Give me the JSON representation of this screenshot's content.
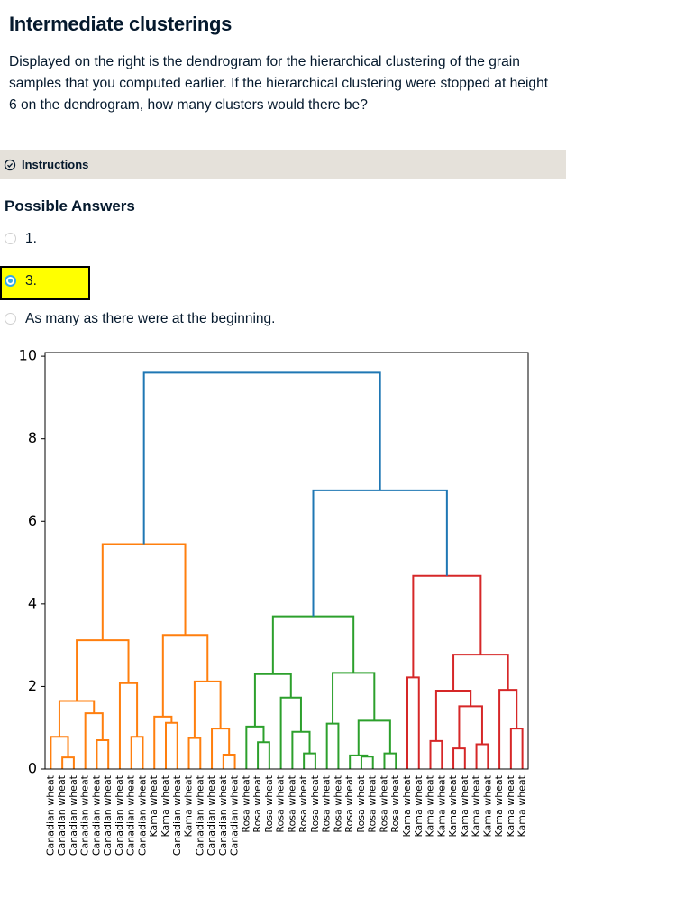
{
  "header": {
    "title": "Intermediate clusterings",
    "description": "Displayed on the right is the dendrogram for the hierarchical clustering of the grain samples that you computed earlier. If the hierarchical clustering were stopped at height 6 on the dendrogram, how many clusters would there be?"
  },
  "instructions": {
    "label": "Instructions"
  },
  "answers": {
    "heading": "Possible Answers",
    "options": [
      "1.",
      "3.",
      "As many as there were at the beginning."
    ],
    "selected": 1
  },
  "chart_data": {
    "type": "dendrogram",
    "leaves": [
      "Canadian wheat",
      "Canadian wheat",
      "Canadian wheat",
      "Canadian wheat",
      "Canadian wheat",
      "Canadian wheat",
      "Canadian wheat",
      "Canadian wheat",
      "Canadian wheat",
      "Kama wheat",
      "Kama wheat",
      "Canadian wheat",
      "Kama wheat",
      "Canadian wheat",
      "Canadian wheat",
      "Canadian wheat",
      "Canadian wheat",
      "Rosa wheat",
      "Rosa wheat",
      "Rosa wheat",
      "Rosa wheat",
      "Rosa wheat",
      "Rosa wheat",
      "Rosa wheat",
      "Rosa wheat",
      "Rosa wheat",
      "Rosa wheat",
      "Rosa wheat",
      "Rosa wheat",
      "Rosa wheat",
      "Rosa wheat",
      "Kama wheat",
      "Kama wheat",
      "Kama wheat",
      "Kama wheat",
      "Kama wheat",
      "Kama wheat",
      "Kama wheat",
      "Kama wheat",
      "Kama wheat",
      "Kama wheat",
      "Kama wheat"
    ],
    "merges": [
      {
        "children": [
          1,
          2
        ],
        "height": 0.28,
        "color": "#ff7f0e"
      },
      {
        "children": [
          0,
          42
        ],
        "height": 0.78,
        "color": "#ff7f0e"
      },
      {
        "children": [
          4,
          5
        ],
        "height": 0.7,
        "color": "#ff7f0e"
      },
      {
        "children": [
          3,
          44
        ],
        "height": 1.35,
        "color": "#ff7f0e"
      },
      {
        "children": [
          43,
          45
        ],
        "height": 1.65,
        "color": "#ff7f0e"
      },
      {
        "children": [
          7,
          8
        ],
        "height": 0.78,
        "color": "#ff7f0e"
      },
      {
        "children": [
          6,
          47
        ],
        "height": 2.08,
        "color": "#ff7f0e"
      },
      {
        "children": [
          46,
          48
        ],
        "height": 3.12,
        "color": "#ff7f0e"
      },
      {
        "children": [
          10,
          11
        ],
        "height": 1.12,
        "color": "#ff7f0e"
      },
      {
        "children": [
          9,
          50
        ],
        "height": 1.27,
        "color": "#ff7f0e"
      },
      {
        "children": [
          12,
          13
        ],
        "height": 0.75,
        "color": "#ff7f0e"
      },
      {
        "children": [
          15,
          16
        ],
        "height": 0.35,
        "color": "#ff7f0e"
      },
      {
        "children": [
          14,
          53
        ],
        "height": 0.98,
        "color": "#ff7f0e"
      },
      {
        "children": [
          52,
          54
        ],
        "height": 2.12,
        "color": "#ff7f0e"
      },
      {
        "children": [
          51,
          55
        ],
        "height": 3.25,
        "color": "#ff7f0e"
      },
      {
        "children": [
          49,
          56
        ],
        "height": 5.45,
        "color": "#ff7f0e"
      },
      {
        "children": [
          18,
          19
        ],
        "height": 0.65,
        "color": "#2ca02c"
      },
      {
        "children": [
          17,
          58
        ],
        "height": 1.03,
        "color": "#2ca02c"
      },
      {
        "children": [
          22,
          23
        ],
        "height": 0.38,
        "color": "#2ca02c"
      },
      {
        "children": [
          21,
          60
        ],
        "height": 0.9,
        "color": "#2ca02c"
      },
      {
        "children": [
          20,
          61
        ],
        "height": 1.73,
        "color": "#2ca02c"
      },
      {
        "children": [
          59,
          62
        ],
        "height": 2.3,
        "color": "#2ca02c"
      },
      {
        "children": [
          24,
          25
        ],
        "height": 1.1,
        "color": "#2ca02c"
      },
      {
        "children": [
          27,
          28
        ],
        "height": 0.3,
        "color": "#2ca02c"
      },
      {
        "children": [
          26,
          65
        ],
        "height": 0.33,
        "color": "#2ca02c"
      },
      {
        "children": [
          29,
          30
        ],
        "height": 0.38,
        "color": "#2ca02c"
      },
      {
        "children": [
          66,
          67
        ],
        "height": 1.17,
        "color": "#2ca02c"
      },
      {
        "children": [
          64,
          68
        ],
        "height": 2.33,
        "color": "#2ca02c"
      },
      {
        "children": [
          63,
          69
        ],
        "height": 3.7,
        "color": "#2ca02c"
      },
      {
        "children": [
          31,
          32
        ],
        "height": 2.22,
        "color": "#d62728"
      },
      {
        "children": [
          33,
          34
        ],
        "height": 0.68,
        "color": "#d62728"
      },
      {
        "children": [
          35,
          36
        ],
        "height": 0.5,
        "color": "#d62728"
      },
      {
        "children": [
          37,
          38
        ],
        "height": 0.6,
        "color": "#d62728"
      },
      {
        "children": [
          73,
          74
        ],
        "height": 1.52,
        "color": "#d62728"
      },
      {
        "children": [
          72,
          75
        ],
        "height": 1.9,
        "color": "#d62728"
      },
      {
        "children": [
          40,
          41
        ],
        "height": 0.98,
        "color": "#d62728"
      },
      {
        "children": [
          39,
          77
        ],
        "height": 1.92,
        "color": "#d62728"
      },
      {
        "children": [
          76,
          78
        ],
        "height": 2.77,
        "color": "#d62728"
      },
      {
        "children": [
          71,
          79
        ],
        "height": 4.68,
        "color": "#d62728"
      },
      {
        "children": [
          70,
          80
        ],
        "height": 6.75,
        "color": "#1f77b4"
      },
      {
        "children": [
          57,
          81
        ],
        "height": 9.6,
        "color": "#1f77b4"
      }
    ],
    "ylim": [
      0,
      10.09
    ],
    "yticks": [
      0,
      2,
      4,
      6,
      8,
      10
    ]
  }
}
